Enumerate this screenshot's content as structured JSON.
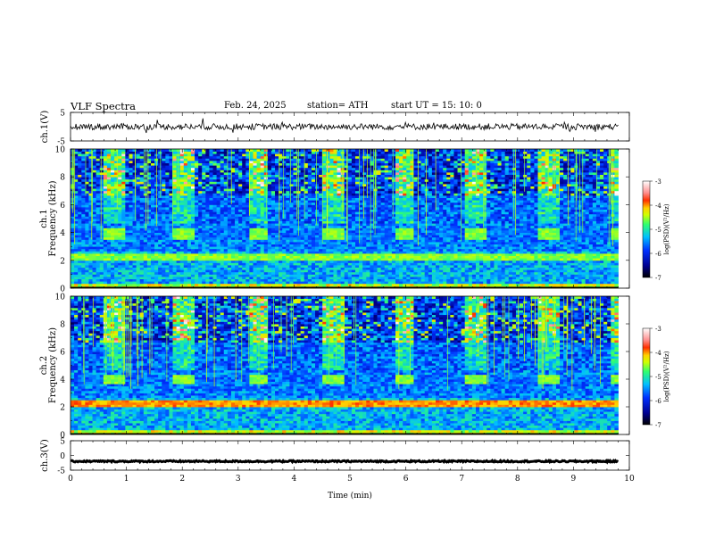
{
  "header": {
    "title": "VLF  Spectra",
    "date": "Feb. 24, 2025",
    "station": "station= ATH",
    "start": "start  UT  =    15: 10: 0"
  },
  "chart_data": [
    {
      "type": "line",
      "panel": "ch1-waveform",
      "ylabel": "ch.1(V)",
      "ylim": [
        -5,
        5
      ],
      "yticks": [
        "5",
        "-5"
      ],
      "xlim": [
        0,
        10
      ],
      "series": [
        {
          "x": [
            0,
            9.8
          ],
          "values": [
            0,
            0
          ]
        }
      ],
      "note_level": 0
    },
    {
      "type": "heatmap",
      "panel": "ch1-spectrogram",
      "ylabel": "ch.1\nFrequency  (kHz)",
      "ylabel_line1": "ch.1",
      "ylabel_line2": "Frequency  (kHz)",
      "ylim": [
        0,
        10
      ],
      "yticks": [
        "0",
        "2",
        "4",
        "6",
        "8",
        "10"
      ],
      "xlim": [
        0,
        10
      ],
      "data_end_min": 9.8,
      "tone_bursts_min": [
        [
          0.6,
          1.0
        ],
        [
          1.85,
          2.2
        ],
        [
          3.2,
          3.55
        ],
        [
          4.5,
          4.9
        ],
        [
          5.8,
          6.15
        ],
        [
          7.05,
          7.45
        ],
        [
          8.35,
          8.75
        ],
        [
          9.65,
          9.8
        ]
      ],
      "tone_band_khz": [
        3.4,
        4.3
      ],
      "colorbar": {
        "label": "log(PSD)(V²/Hz)",
        "ticks": [
          "-3",
          "-4",
          "-5",
          "-6",
          "-7"
        ],
        "range": [
          -7,
          -3
        ]
      }
    },
    {
      "type": "heatmap",
      "panel": "ch2-spectrogram",
      "ylabel_line1": "ch.2",
      "ylabel_line2": "Frequency  (kHz)",
      "ylim": [
        0,
        10
      ],
      "yticks": [
        "0",
        "2",
        "4",
        "6",
        "8",
        "10"
      ],
      "xlim": [
        0,
        10
      ],
      "data_end_min": 9.8,
      "tone_bursts_min": [
        [
          0.6,
          1.0
        ],
        [
          1.85,
          2.2
        ],
        [
          3.2,
          3.55
        ],
        [
          4.5,
          4.9
        ],
        [
          5.8,
          6.15
        ],
        [
          7.05,
          7.45
        ],
        [
          8.35,
          8.75
        ],
        [
          9.65,
          9.8
        ]
      ],
      "tone_band_khz": [
        3.6,
        4.3
      ],
      "colorbar": {
        "label": "log(PSD)(V²/Hz)",
        "ticks": [
          "-3",
          "-4",
          "-5",
          "-6",
          "-7"
        ],
        "range": [
          -7,
          -3
        ]
      }
    },
    {
      "type": "line",
      "panel": "ch3-waveform",
      "ylabel": "ch.3(V)",
      "ylim": [
        -5,
        5
      ],
      "yticks": [
        "5",
        "0",
        "-5"
      ],
      "xlim": [
        0,
        10
      ],
      "series": [
        {
          "x": [
            0,
            9.8
          ],
          "values": [
            -2,
            -2
          ]
        }
      ]
    }
  ],
  "xaxis": {
    "label": "Time  (min)",
    "ticks": [
      "0",
      "1",
      "2",
      "3",
      "4",
      "5",
      "6",
      "7",
      "8",
      "9",
      "10"
    ]
  },
  "colors": {
    "colormap": [
      "#000080",
      "#0000ff",
      "#0080ff",
      "#00e0ff",
      "#40ff80",
      "#c0ff00",
      "#ffff00",
      "#ff8000",
      "#ff0000",
      "#ffd0d0",
      "#ffffff"
    ]
  }
}
